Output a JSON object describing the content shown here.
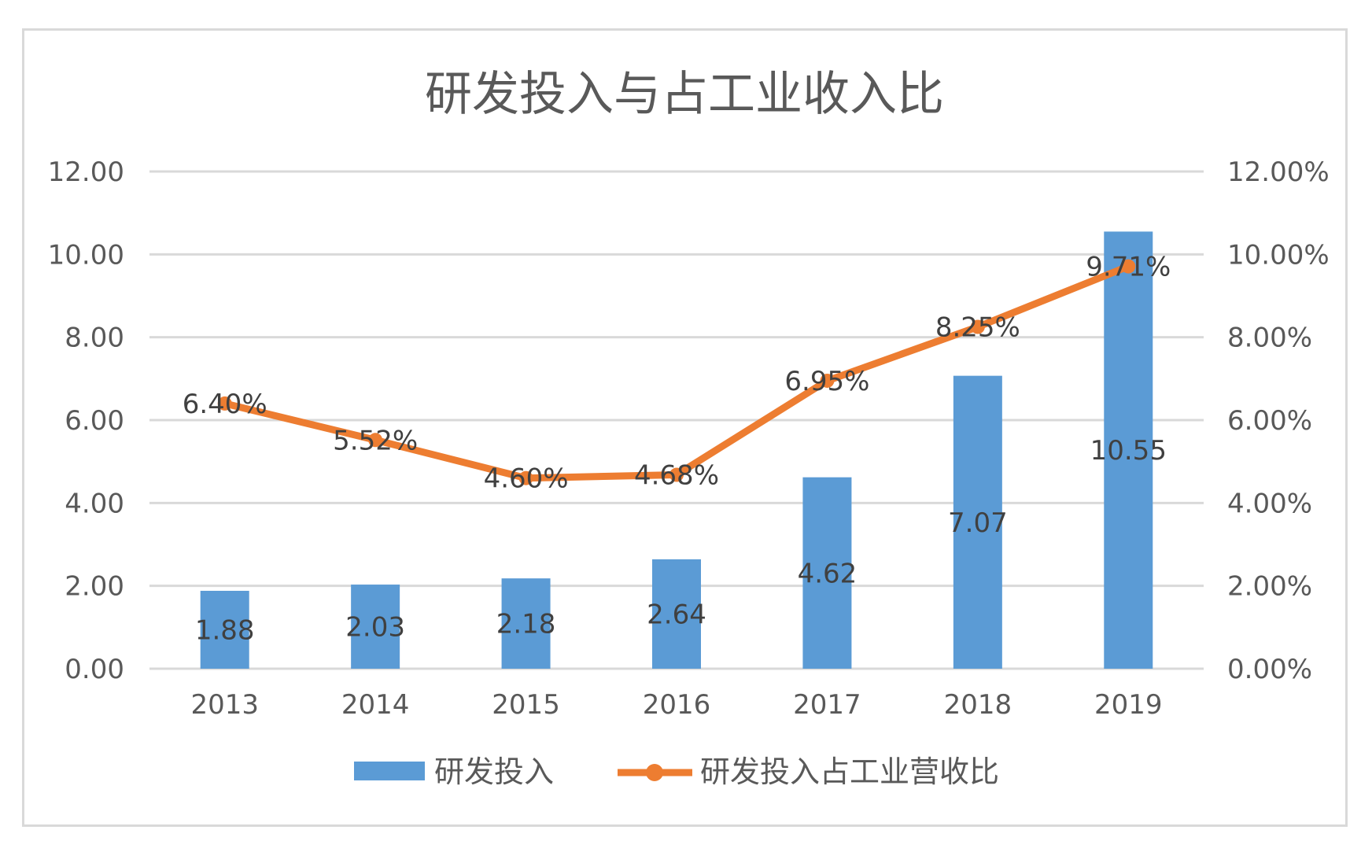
{
  "chart_data": {
    "type": "bar",
    "title": "研发投入与占工业收入比",
    "categories": [
      "2013",
      "2014",
      "2015",
      "2016",
      "2017",
      "2018",
      "2019"
    ],
    "series": [
      {
        "name": "研发投入",
        "type": "bar",
        "axis": "left",
        "color": "#5b9bd5",
        "values": [
          1.88,
          2.03,
          2.18,
          2.64,
          4.62,
          7.07,
          10.55
        ],
        "labels": [
          "1.88",
          "2.03",
          "2.18",
          "2.64",
          "4.62",
          "7.07",
          "10.55"
        ]
      },
      {
        "name": "研发投入占工业营收比",
        "type": "line",
        "axis": "right",
        "color": "#ed7d31",
        "values": [
          6.4,
          5.52,
          4.6,
          4.68,
          6.95,
          8.25,
          9.71
        ],
        "labels": [
          "6.40%",
          "5.52%",
          "4.60%",
          "4.68%",
          "6.95%",
          "8.25%",
          "9.71%"
        ]
      }
    ],
    "y_left": {
      "min": 0,
      "max": 12,
      "ticks": [
        "0.00",
        "2.00",
        "4.00",
        "6.00",
        "8.00",
        "10.00",
        "12.00"
      ]
    },
    "y_right": {
      "min": 0,
      "max": 12,
      "ticks": [
        "0.00%",
        "2.00%",
        "4.00%",
        "6.00%",
        "8.00%",
        "10.00%",
        "12.00%"
      ]
    },
    "grid": true,
    "legend": "bottom",
    "gridColor": "#d9d9d9"
  }
}
